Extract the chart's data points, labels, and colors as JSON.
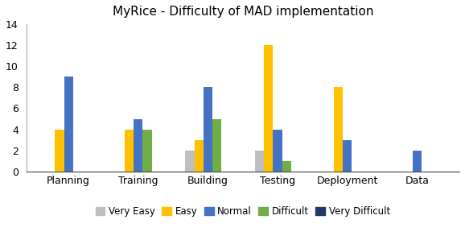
{
  "title": "MyRice - Difficulty of MAD implementation",
  "categories": [
    "Planning",
    "Training",
    "Building",
    "Testing",
    "Deployment",
    "Data"
  ],
  "series": {
    "Very Easy": [
      0,
      0,
      2,
      2,
      0,
      0
    ],
    "Easy": [
      4,
      4,
      3,
      12,
      8,
      0
    ],
    "Normal": [
      9,
      5,
      8,
      4,
      3,
      2
    ],
    "Difficult": [
      0,
      4,
      5,
      1,
      0,
      0
    ],
    "Very Difficult": [
      0,
      0,
      0,
      0,
      0,
      0
    ]
  },
  "colors": {
    "Very Easy": "#bfbfbf",
    "Easy": "#ffc000",
    "Normal": "#4472c4",
    "Difficult": "#70ad47",
    "Very Difficult": "#203864"
  },
  "ylim": [
    0,
    14
  ],
  "yticks": [
    0,
    2,
    4,
    6,
    8,
    10,
    12,
    14
  ],
  "legend_order": [
    "Very Easy",
    "Easy",
    "Normal",
    "Difficult",
    "Very Difficult"
  ],
  "bar_width": 0.13,
  "figsize": [
    5.78,
    2.88
  ],
  "dpi": 100
}
